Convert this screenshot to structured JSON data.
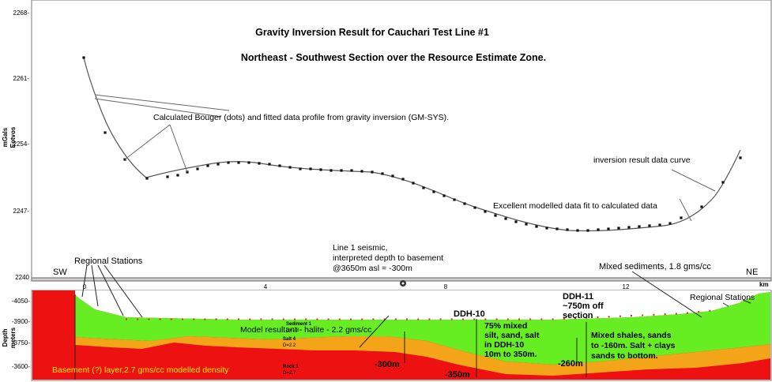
{
  "top_panel": {
    "title": "Gravity Inversion Result for Cauchari Test Line #1",
    "subtitle": "Northeast - Southwest Section over the Resource Estimate Zone.",
    "y_axis_label_1": "mGals",
    "y_axis_label_2": "Eotvos",
    "y_ticks": [
      "2268-",
      "2261-",
      "2254-",
      "2247-",
      "2240"
    ],
    "annotations": {
      "bouger": "Calculated Bouger (dots) and fitted data profile from gravity inversion (GM-SYS).",
      "inversion_curve": "inversion result data curve",
      "fit": "Excellent modelled data fit to calculated data",
      "regional_stations": "Regional Stations",
      "seismic_1": "Line 1 seismic,",
      "seismic_2": "interpreted depth to basement",
      "seismic_3": "@3650m asl = -300m",
      "mixed_sediments": "Mixed sediments, 1.8 gms/cc",
      "sw": "SW",
      "ne": "NE"
    }
  },
  "bottom_panel": {
    "x_ticks": [
      "0",
      "4",
      "8",
      "12"
    ],
    "x_unit": "km",
    "y_axis_label_1": "Depth",
    "y_axis_label_2": "meters",
    "y_ticks": [
      "-4050-",
      "-3900-",
      "-3750-",
      "-3600-"
    ],
    "labels": {
      "halite": "Model resultant - halite - 2.2 gms/cc",
      "regional_stations": "Regional Stations",
      "ddh10": "DDH-10",
      "ddh11_1": "DDH-11",
      "ddh11_2": "~750m off",
      "ddh11_3": "section",
      "ddh10_desc_1": "75% mixed",
      "ddh10_desc_2": "silt, sand, salt",
      "ddh10_desc_3": "in DDH-10",
      "ddh10_desc_4": "10m to 350m.",
      "ddh11_desc_1": "Mixed shales, sands",
      "ddh11_desc_2": "to -160m. Salt + clays",
      "ddh11_desc_3": "sands to bottom.",
      "depth_300": "-300m",
      "depth_350": "-350m",
      "depth_260": "-260m",
      "basement": "Basement (?) layer,2.7 gms/cc modelled density",
      "sediment_1": "Sediment 1",
      "sediment_1_d": "D=1.8",
      "salt_4": "Salt 4",
      "salt_4_d": "D=2.2",
      "rock_1": "Rock 1",
      "rock_1_d": "D=2.7"
    }
  },
  "colors": {
    "green": "#66ee22",
    "orange": "#f4a418",
    "red": "#ee1111",
    "line": "#444444"
  }
}
